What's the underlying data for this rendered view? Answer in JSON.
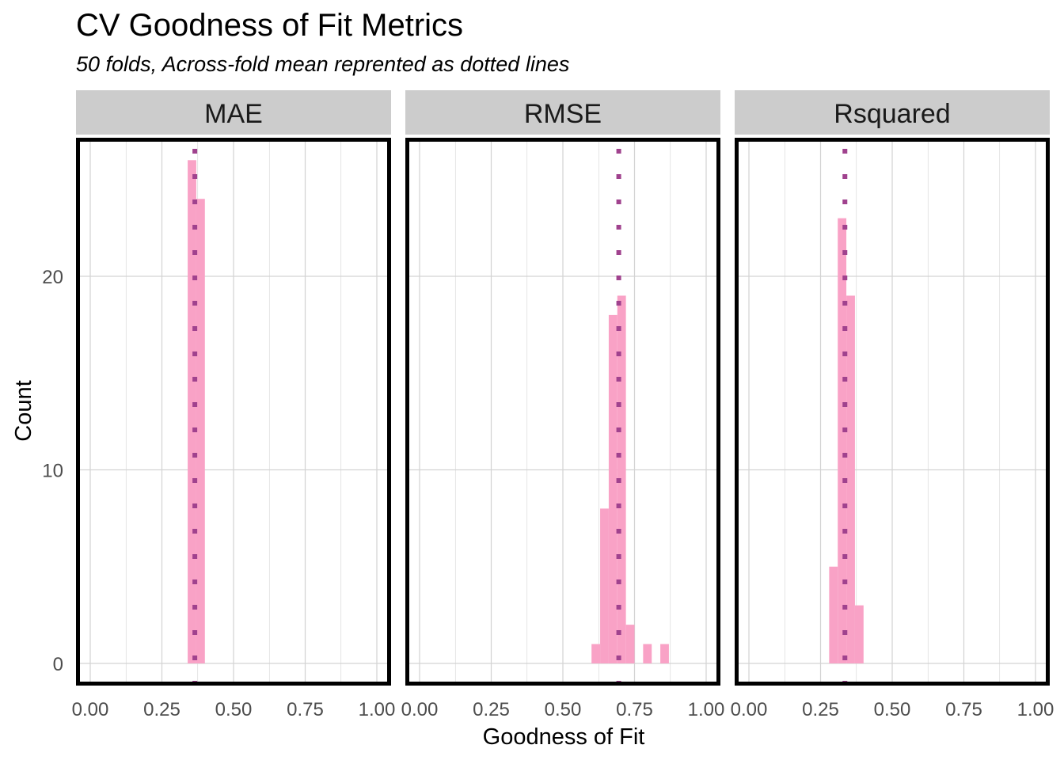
{
  "chart_data": {
    "type": "bar",
    "title": "CV Goodness of Fit Metrics",
    "subtitle": "50 folds, Across-fold mean reprented as dotted lines",
    "xlabel": "Goodness of Fit",
    "ylabel": "Count",
    "xlim": [
      0,
      1
    ],
    "x_ticks": [
      "0.00",
      "0.25",
      "0.50",
      "0.75",
      "1.00"
    ],
    "ylim": [
      0,
      26.5
    ],
    "y_ticks": [
      "0",
      "10",
      "20"
    ],
    "grid": true,
    "legend": "none",
    "colors": {
      "bar": "#f9a2c6",
      "mean_line": "#a0428e",
      "strip": "#cccccc",
      "border": "#000000",
      "grid": "#d3d3d3"
    },
    "panels": [
      {
        "name": "MAE",
        "mean": 0.365,
        "bins": [
          {
            "x0": 0.34,
            "x1": 0.37,
            "count": 26
          },
          {
            "x0": 0.37,
            "x1": 0.4,
            "count": 24
          }
        ]
      },
      {
        "name": "RMSE",
        "mean": 0.695,
        "bins": [
          {
            "x0": 0.6,
            "x1": 0.63,
            "count": 1
          },
          {
            "x0": 0.63,
            "x1": 0.66,
            "count": 8
          },
          {
            "x0": 0.66,
            "x1": 0.69,
            "count": 18
          },
          {
            "x0": 0.69,
            "x1": 0.72,
            "count": 19
          },
          {
            "x0": 0.72,
            "x1": 0.75,
            "count": 2
          },
          {
            "x0": 0.78,
            "x1": 0.81,
            "count": 1
          },
          {
            "x0": 0.84,
            "x1": 0.87,
            "count": 1
          }
        ]
      },
      {
        "name": "Rsquared",
        "mean": 0.335,
        "bins": [
          {
            "x0": 0.28,
            "x1": 0.31,
            "count": 5
          },
          {
            "x0": 0.31,
            "x1": 0.34,
            "count": 23
          },
          {
            "x0": 0.34,
            "x1": 0.37,
            "count": 19
          },
          {
            "x0": 0.37,
            "x1": 0.4,
            "count": 3
          }
        ]
      }
    ]
  }
}
